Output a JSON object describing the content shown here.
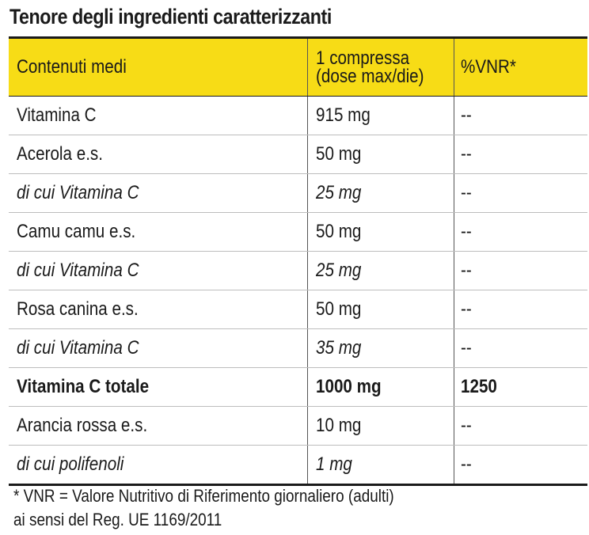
{
  "title": "Tenore degli ingredienti caratterizzanti",
  "table": {
    "headers": {
      "col1": "Contenuti medi",
      "col2_line1": "1 compressa",
      "col2_line2": "(dose max/die)",
      "col3": "%VNR*"
    },
    "rows": [
      {
        "name": "Vitamina C",
        "dose": "915 mg",
        "vnr": "--",
        "style": "normal"
      },
      {
        "name": "Acerola e.s.",
        "dose": "50 mg",
        "vnr": "--",
        "style": "normal"
      },
      {
        "name": "di cui Vitamina C",
        "dose": "25 mg",
        "vnr": "--",
        "style": "italic"
      },
      {
        "name": "Camu camu e.s.",
        "dose": "50 mg",
        "vnr": "--",
        "style": "normal"
      },
      {
        "name": "di cui Vitamina C",
        "dose": "25 mg",
        "vnr": "--",
        "style": "italic"
      },
      {
        "name": "Rosa canina e.s.",
        "dose": "50 mg",
        "vnr": "--",
        "style": "normal"
      },
      {
        "name": "di cui Vitamina C",
        "dose": "35 mg",
        "vnr": "--",
        "style": "italic"
      },
      {
        "name": "Vitamina C totale",
        "dose": "1000 mg",
        "vnr": "1250",
        "style": "bold"
      },
      {
        "name": "Arancia rossa e.s.",
        "dose": "10 mg",
        "vnr": "--",
        "style": "normal"
      },
      {
        "name": "di cui polifenoli",
        "dose": "1 mg",
        "vnr": "--",
        "style": "italic"
      }
    ]
  },
  "footnote": {
    "line1": "* VNR = Valore Nutritivo di Riferimento giornaliero (adulti)",
    "line2": "ai sensi del Reg. UE 1169/2011"
  },
  "colors": {
    "header_bg": "#f7dc16",
    "text": "#1a1a1a",
    "row_divider": "#bdbdbd"
  }
}
